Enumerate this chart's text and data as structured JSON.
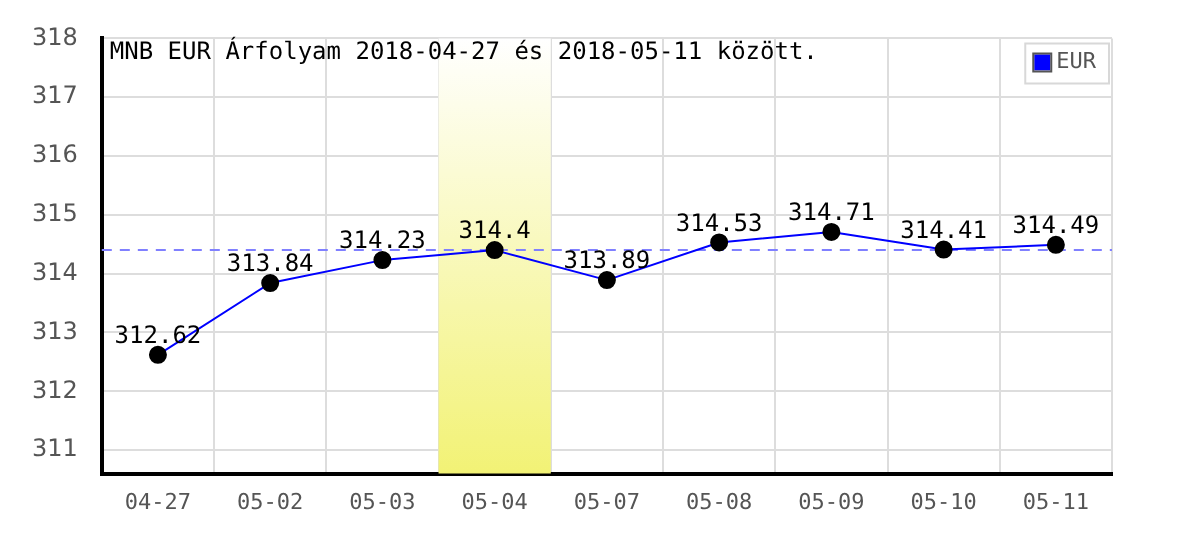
{
  "chart_data": {
    "type": "line",
    "title": "MNB EUR Árfolyam 2018-04-27 és 2018-05-11 között.",
    "categories": [
      "04-27",
      "05-02",
      "05-03",
      "05-04",
      "05-07",
      "05-08",
      "05-09",
      "05-10",
      "05-11"
    ],
    "series": [
      {
        "name": "EUR",
        "color": "#0000ff",
        "values": [
          312.62,
          313.84,
          314.23,
          314.4,
          313.89,
          314.53,
          314.71,
          314.41,
          314.49
        ]
      }
    ],
    "ylim": [
      310.6,
      318
    ],
    "yticks": [
      311,
      312,
      313,
      314,
      315,
      316,
      317,
      318
    ],
    "grid": true,
    "legend": "top right",
    "marker": "circle",
    "line_style": "solid",
    "data_labels": true,
    "ref_lines": [
      {
        "axis": "y",
        "value": 314.4,
        "color": "#8080ff",
        "line_style": "dashed"
      }
    ],
    "bands": [
      {
        "axis": "x",
        "from": "05-04",
        "to": "05-04",
        "color": "#f0f060"
      }
    ]
  }
}
